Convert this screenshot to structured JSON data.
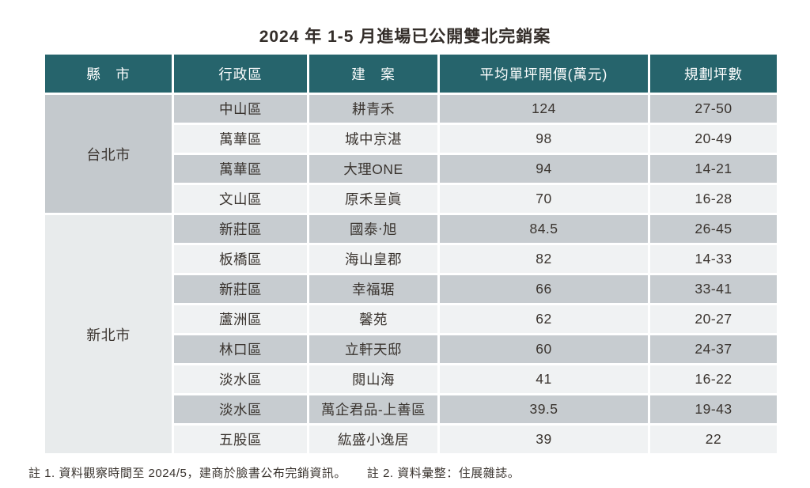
{
  "title": "2024 年 1-5 月進場已公開雙北完銷案",
  "colors": {
    "header_bg": "#26646c",
    "header_text": "#ffffff",
    "row_gray": "#c7ccd0",
    "row_light": "#f0f2f3",
    "city_taipei_bg": "#c4c9cd",
    "city_newtaipei_bg": "#e8ebec",
    "text": "#3a342f"
  },
  "table": {
    "headers": [
      "縣　市",
      "行政區",
      "建　案",
      "平均單坪開價(萬元)",
      "規劃坪數"
    ],
    "city_groups": [
      {
        "city": "台北市",
        "row_count": 4
      },
      {
        "city": "新北市",
        "row_count": 8
      }
    ],
    "rows": [
      {
        "district": "中山區",
        "project": "耕青禾",
        "price": "124",
        "size": "27-50"
      },
      {
        "district": "萬華區",
        "project": "城中京湛",
        "price": "98",
        "size": "20-49"
      },
      {
        "district": "萬華區",
        "project": "大理ONE",
        "price": "94",
        "size": "14-21"
      },
      {
        "district": "文山區",
        "project": "原禾呈眞",
        "price": "70",
        "size": "16-28"
      },
      {
        "district": "新莊區",
        "project": "國泰‧旭",
        "price": "84.5",
        "size": "26-45"
      },
      {
        "district": "板橋區",
        "project": "海山皇郡",
        "price": "82",
        "size": "14-33"
      },
      {
        "district": "新莊區",
        "project": "幸福琚",
        "price": "66",
        "size": "33-41"
      },
      {
        "district": "蘆洲區",
        "project": "馨苑",
        "price": "62",
        "size": "20-27"
      },
      {
        "district": "林口區",
        "project": "立軒天邸",
        "price": "60",
        "size": "24-37"
      },
      {
        "district": "淡水區",
        "project": "閱山海",
        "price": "41",
        "size": "16-22"
      },
      {
        "district": "淡水區",
        "project": "萬企君品-上善區",
        "price": "39.5",
        "size": "19-43"
      },
      {
        "district": "五股區",
        "project": "紘盛小逸居",
        "price": "39",
        "size": "22"
      }
    ]
  },
  "footnotes": {
    "note1": "註 1. 資料觀察時間至 2024/5，建商於臉書公布完銷資訊。",
    "note2": "註 2. 資料彙整：住展雜誌。"
  },
  "chart_data": {
    "type": "table",
    "title": "2024 年 1-5 月進場已公開雙北完銷案",
    "columns": [
      "縣市",
      "行政區",
      "建案",
      "平均單坪開價(萬元)",
      "規劃坪數"
    ],
    "rows": [
      [
        "台北市",
        "中山區",
        "耕青禾",
        124,
        "27-50"
      ],
      [
        "台北市",
        "萬華區",
        "城中京湛",
        98,
        "20-49"
      ],
      [
        "台北市",
        "萬華區",
        "大理ONE",
        94,
        "14-21"
      ],
      [
        "台北市",
        "文山區",
        "原禾呈眞",
        70,
        "16-28"
      ],
      [
        "新北市",
        "新莊區",
        "國泰‧旭",
        84.5,
        "26-45"
      ],
      [
        "新北市",
        "板橋區",
        "海山皇郡",
        82,
        "14-33"
      ],
      [
        "新北市",
        "新莊區",
        "幸福琚",
        66,
        "33-41"
      ],
      [
        "新北市",
        "蘆洲區",
        "馨苑",
        62,
        "20-27"
      ],
      [
        "新北市",
        "林口區",
        "立軒天邸",
        60,
        "24-37"
      ],
      [
        "新北市",
        "淡水區",
        "閱山海",
        41,
        "16-22"
      ],
      [
        "新北市",
        "淡水區",
        "萬企君品-上善區",
        39.5,
        "19-43"
      ],
      [
        "新北市",
        "五股區",
        "紘盛小逸居",
        39,
        "22"
      ]
    ],
    "notes": [
      "註 1. 資料觀察時間至 2024/5，建商於臉書公布完銷資訊。",
      "註 2. 資料彙整：住展雜誌。"
    ]
  }
}
